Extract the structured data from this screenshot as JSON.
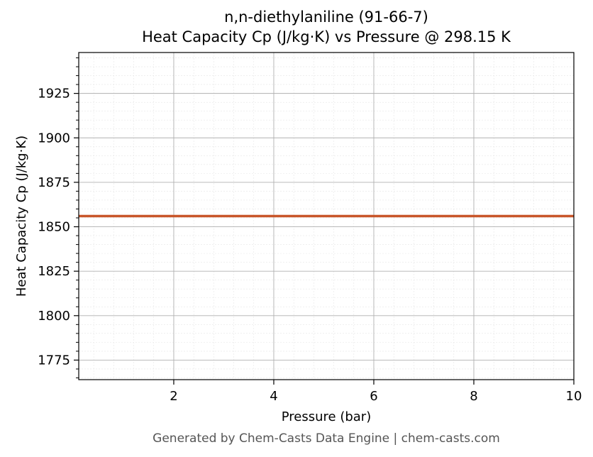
{
  "chart_data": {
    "type": "line",
    "title": "n,n-diethylaniline (91-66-7)",
    "subtitle": "Heat Capacity Cp (J/kg·K) vs Pressure @ 298.15 K",
    "xlabel": "Pressure (bar)",
    "ylabel": "Heat Capacity Cp (J/kg·K)",
    "xlim": [
      0.1,
      10
    ],
    "ylim": [
      1764,
      1948
    ],
    "xticks": [
      2,
      4,
      6,
      8,
      10
    ],
    "yticks": [
      1775,
      1800,
      1825,
      1850,
      1875,
      1900,
      1925
    ],
    "grid": true,
    "series": [
      {
        "color": "#c8562a",
        "x": [
          0.1,
          1,
          2,
          3,
          4,
          5,
          6,
          7,
          8,
          9,
          10
        ],
        "y": [
          1856,
          1856,
          1856,
          1856,
          1856,
          1856,
          1856,
          1856,
          1856,
          1856,
          1856
        ]
      }
    ]
  },
  "footer": "Generated by Chem-Casts Data Engine | chem-casts.com"
}
